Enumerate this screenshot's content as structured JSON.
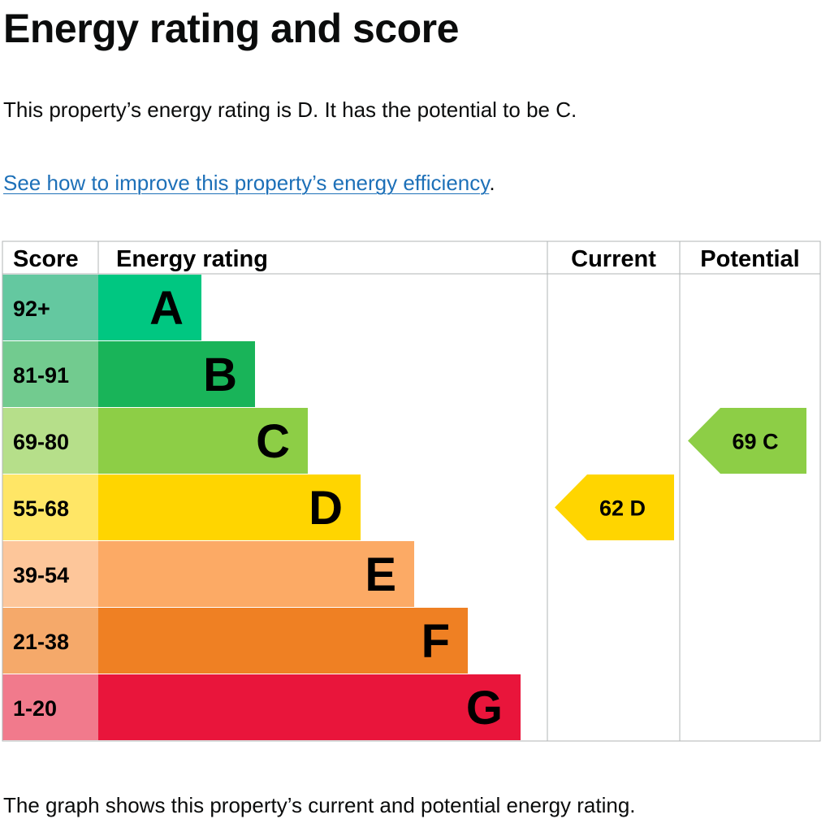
{
  "title": "Energy rating and score",
  "summary": "This property’s energy rating is D. It has the potential to be C.",
  "link": {
    "text": "See how to improve this property’s energy efficiency",
    "suffix": "."
  },
  "footer": "The graph shows this property’s current and potential energy rating.",
  "chart_data": {
    "type": "bar",
    "headers": {
      "score": "Score",
      "rating": "Energy rating",
      "current": "Current",
      "potential": "Potential"
    },
    "bands": [
      {
        "letter": "A",
        "range": "92+",
        "color": "#00c781",
        "light": "#64c8a0"
      },
      {
        "letter": "B",
        "range": "81-91",
        "color": "#19b459",
        "light": "#72cb8f"
      },
      {
        "letter": "C",
        "range": "69-80",
        "color": "#8dce46",
        "light": "#b6df8a"
      },
      {
        "letter": "D",
        "range": "55-68",
        "color": "#ffd500",
        "light": "#ffe666"
      },
      {
        "letter": "E",
        "range": "39-54",
        "color": "#fcaa65",
        "light": "#fdc69a"
      },
      {
        "letter": "F",
        "range": "21-38",
        "color": "#ef8023",
        "light": "#f5a96a"
      },
      {
        "letter": "G",
        "range": "1-20",
        "color": "#e9153b",
        "light": "#f17a8c"
      }
    ],
    "current": {
      "score": 62,
      "letter": "D",
      "label": "62  D"
    },
    "potential": {
      "score": 69,
      "letter": "C",
      "label": "69  C"
    }
  }
}
